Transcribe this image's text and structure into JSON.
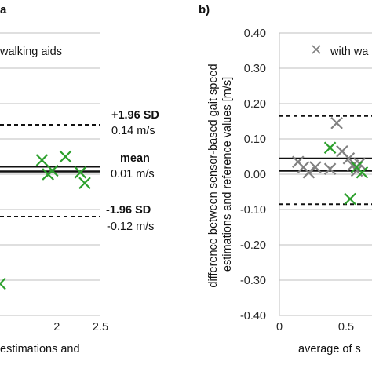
{
  "chart_data": [
    {
      "panel": "a",
      "type": "scatter",
      "xlabel": "estimations and",
      "ylabel": "",
      "xticks": [
        "2",
        "2.5"
      ],
      "xlim": [
        1.35,
        2.5
      ],
      "ylim": [
        -0.4,
        0.4
      ],
      "grid": true,
      "legend": {
        "label": "walking aids",
        "position": "top"
      },
      "lines": {
        "upper": {
          "label": "+1.96 SD",
          "value_text": "0.14 m/s",
          "value": 0.14
        },
        "mean": {
          "label": "mean",
          "value_text": "0.01 m/s",
          "value": 0.01
        },
        "lower": {
          "label": "-1.96 SD",
          "value_text": "-0.12 m/s",
          "value": -0.12
        }
      },
      "series": [
        {
          "color": "#2ca02c",
          "points": [
            {
              "x": 1.83,
              "y": 0.04
            },
            {
              "x": 2.1,
              "y": 0.05
            },
            {
              "x": 1.9,
              "y": 0.0
            },
            {
              "x": 1.95,
              "y": 0.01
            },
            {
              "x": 2.27,
              "y": 0.005
            },
            {
              "x": 2.32,
              "y": -0.025
            },
            {
              "x": 1.35,
              "y": -0.31
            }
          ]
        }
      ]
    },
    {
      "panel": "b)",
      "type": "scatter",
      "ylabel": "difference between sensor-based gait speed estimations and reference values [m/s]",
      "xlabel": "average of s",
      "yticks": [
        "0.40",
        "0.30",
        "0.20",
        "0.10",
        "0.00",
        "-0.10",
        "-0.20",
        "-0.30",
        "-0.40"
      ],
      "xticks": [
        "0",
        "0.5"
      ],
      "xlim": [
        0,
        0.7
      ],
      "ylim": [
        -0.4,
        0.4
      ],
      "grid": true,
      "legend": {
        "label": "with wa",
        "position": "top"
      },
      "lines": {
        "upper": {
          "value": 0.165
        },
        "mean": {
          "value": 0.01
        },
        "mean2": {
          "value": 0.045
        },
        "lower": {
          "value": -0.085
        }
      },
      "series": [
        {
          "color": "#808080",
          "points": [
            {
              "x": 0.14,
              "y": 0.035
            },
            {
              "x": 0.18,
              "y": 0.02
            },
            {
              "x": 0.22,
              "y": 0.005
            },
            {
              "x": 0.27,
              "y": 0.02
            },
            {
              "x": 0.38,
              "y": 0.015
            },
            {
              "x": 0.43,
              "y": 0.145
            },
            {
              "x": 0.47,
              "y": 0.065
            },
            {
              "x": 0.52,
              "y": 0.045
            },
            {
              "x": 0.55,
              "y": 0.025
            },
            {
              "x": 0.58,
              "y": 0.01
            },
            {
              "x": 0.6,
              "y": 0.03
            }
          ]
        },
        {
          "color": "#2ca02c",
          "points": [
            {
              "x": 0.38,
              "y": 0.075
            },
            {
              "x": 0.53,
              "y": -0.07
            },
            {
              "x": 0.58,
              "y": 0.02
            },
            {
              "x": 0.62,
              "y": 0.005
            }
          ]
        }
      ]
    }
  ]
}
